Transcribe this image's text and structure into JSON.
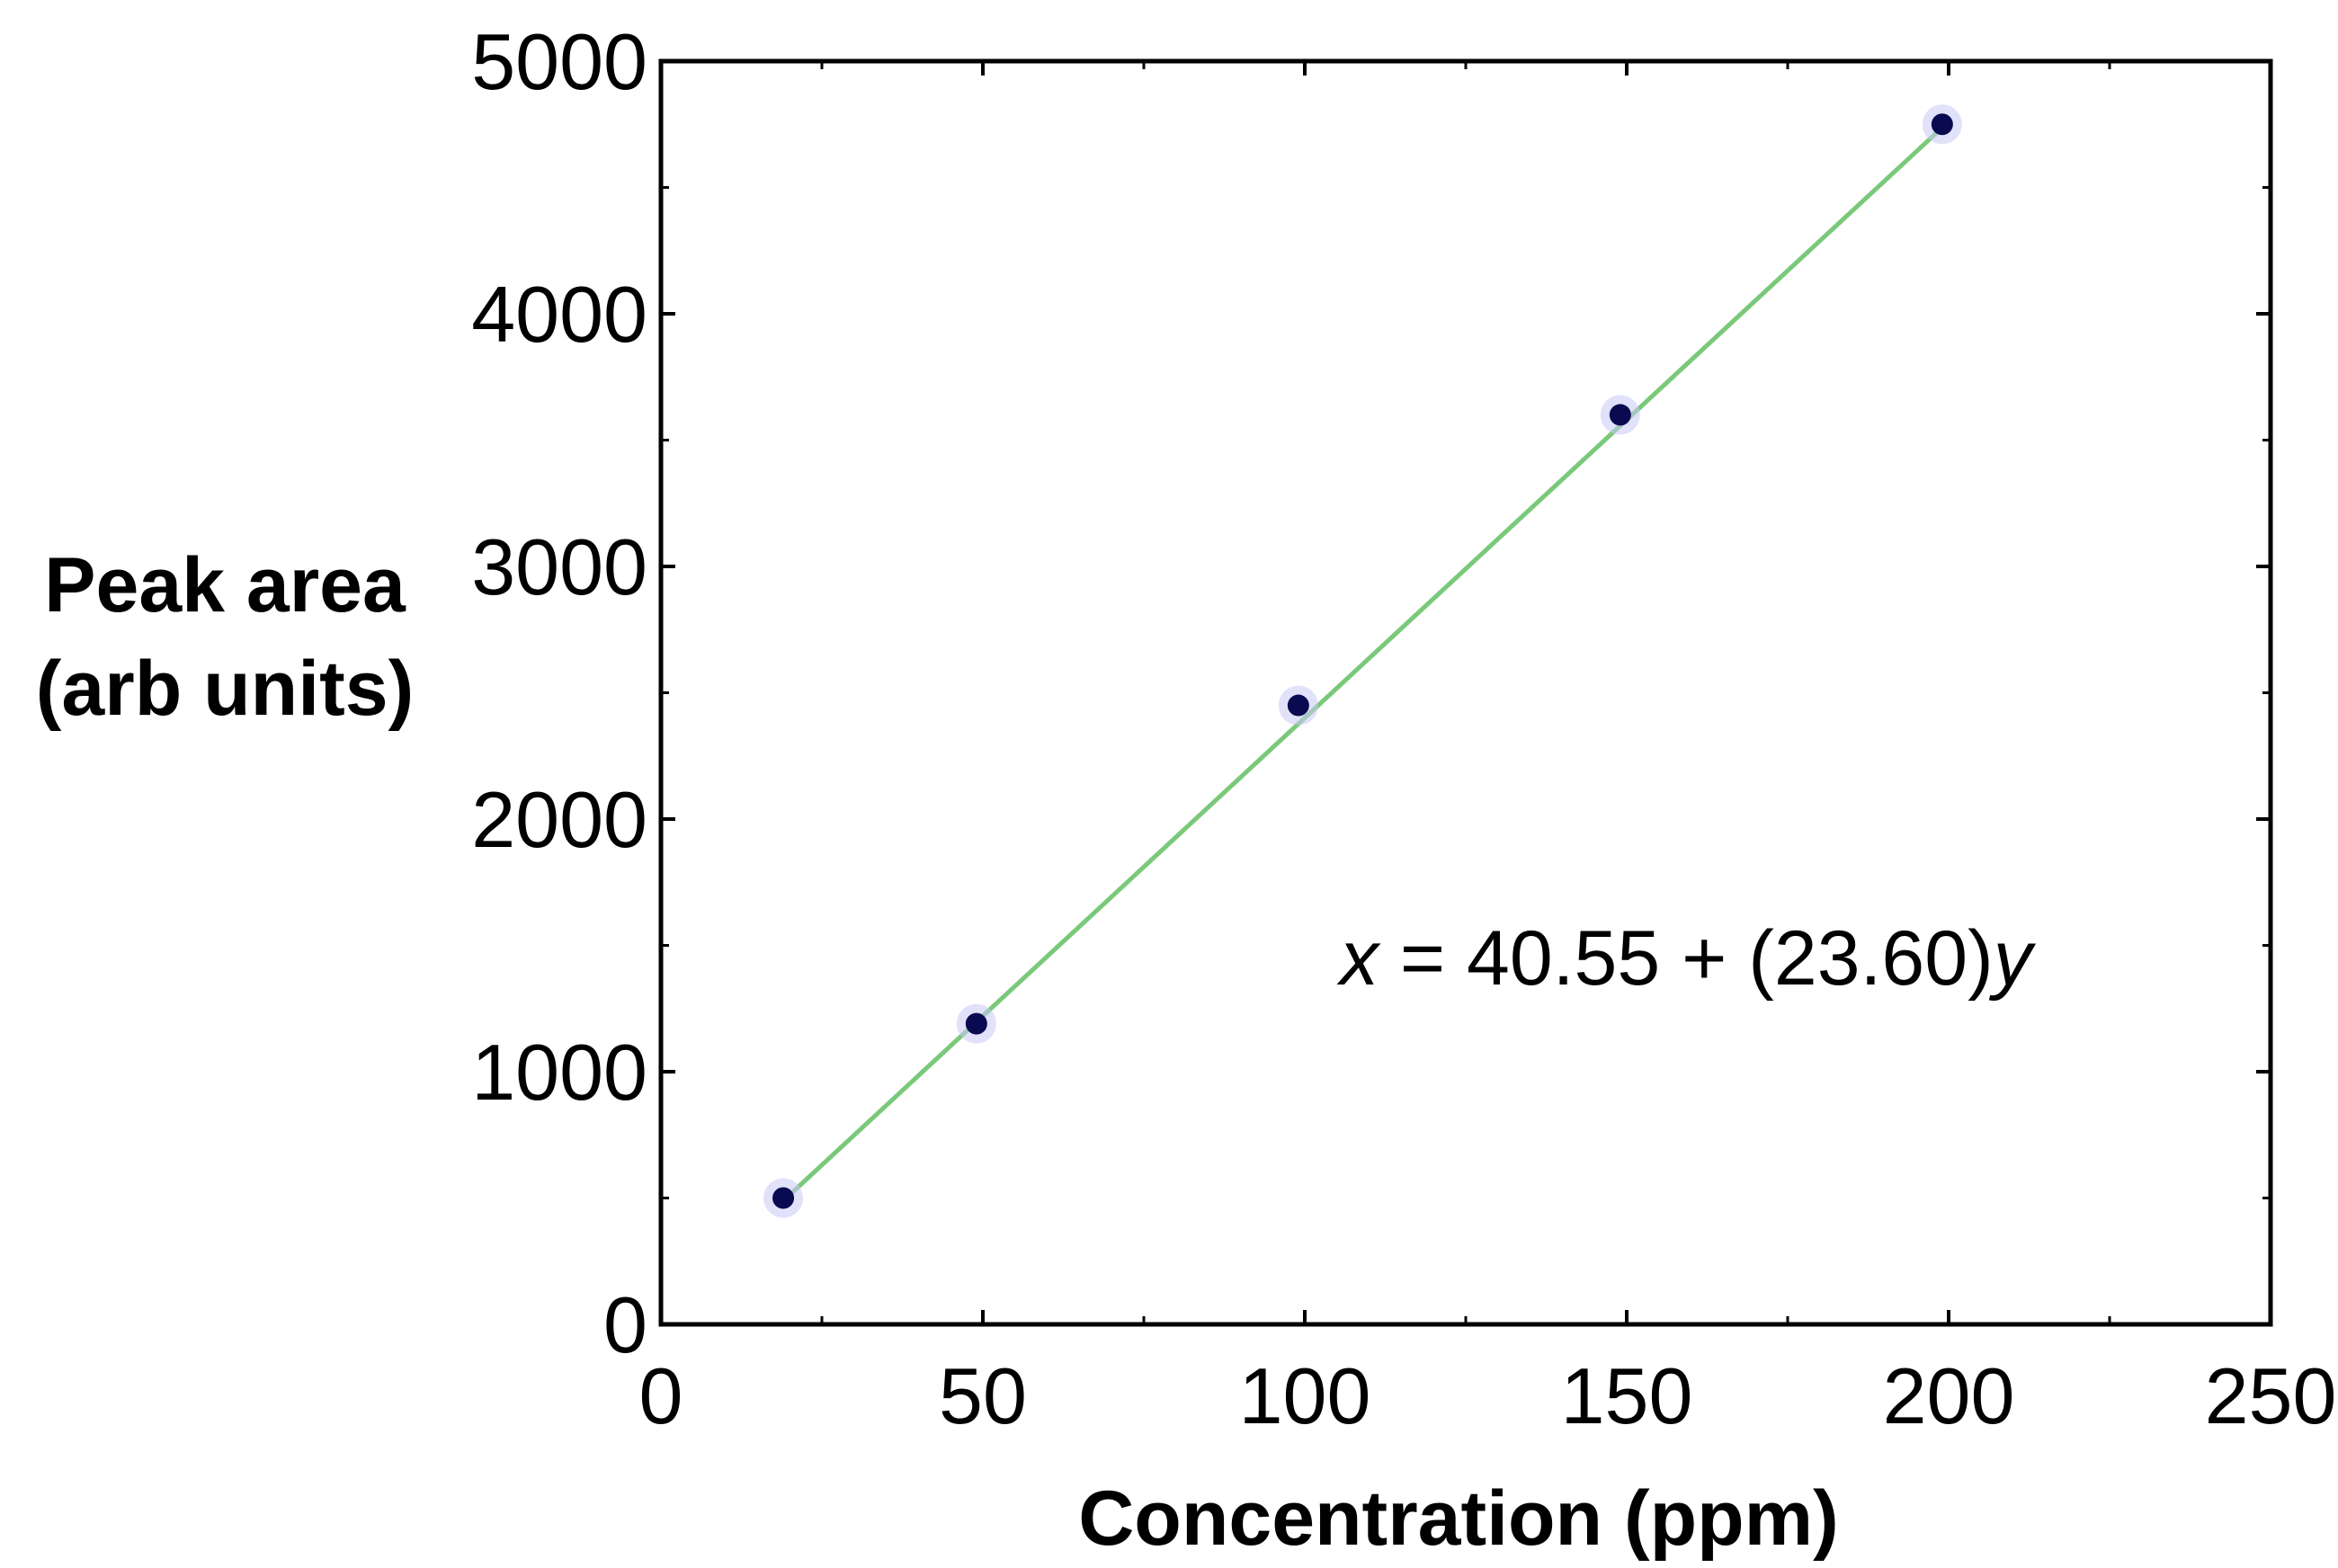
{
  "chart_data": {
    "type": "scatter",
    "xlabel": "Concentration (ppm)",
    "ylabel_lines": [
      "Peak area",
      "(arb units)"
    ],
    "xlim": [
      0,
      250
    ],
    "ylim": [
      0,
      5000
    ],
    "x_ticks": [
      0,
      50,
      100,
      150,
      200,
      250
    ],
    "y_ticks": [
      0,
      1000,
      2000,
      3000,
      4000,
      5000
    ],
    "grid": false,
    "series": [
      {
        "marker_color": "#0a0a50",
        "x": [
          19,
          49,
          99,
          149,
          199
        ],
        "y": [
          500,
          1190,
          2450,
          3600,
          4750
        ]
      }
    ],
    "fit_line": {
      "color": "#7ac97a",
      "x": [
        19,
        199
      ],
      "y": [
        489,
        4737
      ]
    },
    "annotation": {
      "var1": "x",
      "mid": " = 40.55 + (23.60)",
      "var2": "y"
    }
  }
}
